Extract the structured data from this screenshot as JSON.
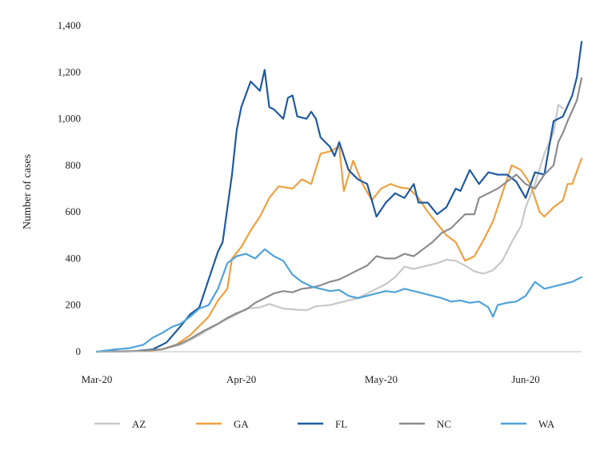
{
  "chart_data": {
    "type": "line",
    "title": "",
    "xlabel": "",
    "ylabel": "Number of cases",
    "ylim": [
      0,
      1400
    ],
    "y_ticks": [
      "0",
      "200",
      "400",
      "600",
      "800",
      "1,000",
      "1,200",
      "1,400"
    ],
    "x_ticks": [
      {
        "label": "Mar-20",
        "day": 0
      },
      {
        "label": "Apr-20",
        "day": 31
      },
      {
        "label": "May-20",
        "day": 61
      },
      {
        "label": "Jun-20",
        "day": 92
      }
    ],
    "x_unit": "days since 2020-03-01",
    "grid": false,
    "legend": "bottom",
    "series": [
      {
        "name": "AZ",
        "color": "#c8c8c8",
        "points": [
          [
            0,
            0
          ],
          [
            8,
            2
          ],
          [
            14,
            10
          ],
          [
            18,
            30
          ],
          [
            21,
            60
          ],
          [
            24,
            95
          ],
          [
            27,
            130
          ],
          [
            30,
            160
          ],
          [
            32,
            185
          ],
          [
            35,
            190
          ],
          [
            37,
            205
          ],
          [
            40,
            185
          ],
          [
            43,
            180
          ],
          [
            45,
            178
          ],
          [
            47,
            195
          ],
          [
            50,
            200
          ],
          [
            53,
            215
          ],
          [
            56,
            230
          ],
          [
            59,
            260
          ],
          [
            62,
            290
          ],
          [
            64,
            320
          ],
          [
            66,
            365
          ],
          [
            68,
            355
          ],
          [
            70,
            365
          ],
          [
            73,
            380
          ],
          [
            75,
            395
          ],
          [
            77,
            390
          ],
          [
            79,
            370
          ],
          [
            81,
            345
          ],
          [
            83,
            335
          ],
          [
            85,
            350
          ],
          [
            87,
            390
          ],
          [
            89,
            470
          ],
          [
            91,
            540
          ],
          [
            92,
            620
          ],
          [
            94,
            720
          ],
          [
            96,
            850
          ],
          [
            98,
            940
          ],
          [
            99,
            1060
          ],
          [
            100,
            1045
          ]
        ]
      },
      {
        "name": "GA",
        "color": "#f0a040",
        "points": [
          [
            0,
            0
          ],
          [
            10,
            2
          ],
          [
            14,
            10
          ],
          [
            17,
            30
          ],
          [
            20,
            70
          ],
          [
            22,
            110
          ],
          [
            24,
            150
          ],
          [
            26,
            220
          ],
          [
            28,
            270
          ],
          [
            29,
            400
          ],
          [
            31,
            450
          ],
          [
            33,
            520
          ],
          [
            35,
            580
          ],
          [
            37,
            660
          ],
          [
            39,
            710
          ],
          [
            42,
            700
          ],
          [
            44,
            740
          ],
          [
            46,
            720
          ],
          [
            48,
            850
          ],
          [
            50,
            860
          ],
          [
            52,
            880
          ],
          [
            53,
            690
          ],
          [
            55,
            820
          ],
          [
            57,
            720
          ],
          [
            59,
            650
          ],
          [
            61,
            700
          ],
          [
            63,
            720
          ],
          [
            65,
            705
          ],
          [
            67,
            700
          ],
          [
            69,
            660
          ],
          [
            71,
            600
          ],
          [
            73,
            550
          ],
          [
            75,
            500
          ],
          [
            77,
            470
          ],
          [
            79,
            390
          ],
          [
            81,
            410
          ],
          [
            83,
            480
          ],
          [
            85,
            560
          ],
          [
            87,
            680
          ],
          [
            89,
            800
          ],
          [
            91,
            780
          ],
          [
            93,
            720
          ],
          [
            95,
            600
          ],
          [
            96,
            580
          ],
          [
            98,
            620
          ],
          [
            100,
            650
          ],
          [
            101,
            720
          ],
          [
            102,
            720
          ],
          [
            104,
            830
          ]
        ]
      },
      {
        "name": "FL",
        "color": "#1f5aa0",
        "points": [
          [
            0,
            0
          ],
          [
            8,
            2
          ],
          [
            12,
            10
          ],
          [
            15,
            40
          ],
          [
            18,
            110
          ],
          [
            20,
            160
          ],
          [
            22,
            190
          ],
          [
            24,
            310
          ],
          [
            26,
            430
          ],
          [
            27,
            470
          ],
          [
            29,
            760
          ],
          [
            30,
            950
          ],
          [
            31,
            1050
          ],
          [
            33,
            1160
          ],
          [
            35,
            1120
          ],
          [
            36,
            1210
          ],
          [
            37,
            1050
          ],
          [
            38,
            1040
          ],
          [
            40,
            1000
          ],
          [
            41,
            1090
          ],
          [
            42,
            1100
          ],
          [
            43,
            1010
          ],
          [
            45,
            1000
          ],
          [
            46,
            1030
          ],
          [
            47,
            1000
          ],
          [
            48,
            920
          ],
          [
            50,
            880
          ],
          [
            51,
            840
          ],
          [
            52,
            900
          ],
          [
            54,
            780
          ],
          [
            56,
            740
          ],
          [
            58,
            720
          ],
          [
            60,
            580
          ],
          [
            62,
            640
          ],
          [
            64,
            680
          ],
          [
            66,
            660
          ],
          [
            68,
            720
          ],
          [
            69,
            640
          ],
          [
            71,
            640
          ],
          [
            73,
            590
          ],
          [
            75,
            620
          ],
          [
            77,
            700
          ],
          [
            78,
            690
          ],
          [
            80,
            780
          ],
          [
            82,
            720
          ],
          [
            84,
            770
          ],
          [
            86,
            760
          ],
          [
            88,
            760
          ],
          [
            90,
            730
          ],
          [
            92,
            660
          ],
          [
            94,
            770
          ],
          [
            96,
            760
          ],
          [
            98,
            990
          ],
          [
            100,
            1010
          ],
          [
            102,
            1100
          ],
          [
            103,
            1180
          ],
          [
            104,
            1330
          ]
        ]
      },
      {
        "name": "NC",
        "color": "#8c8c8c",
        "points": [
          [
            0,
            0
          ],
          [
            8,
            2
          ],
          [
            14,
            10
          ],
          [
            18,
            35
          ],
          [
            20,
            55
          ],
          [
            23,
            90
          ],
          [
            26,
            120
          ],
          [
            28,
            145
          ],
          [
            30,
            165
          ],
          [
            32,
            180
          ],
          [
            34,
            210
          ],
          [
            36,
            230
          ],
          [
            38,
            250
          ],
          [
            40,
            260
          ],
          [
            42,
            255
          ],
          [
            44,
            270
          ],
          [
            46,
            275
          ],
          [
            48,
            285
          ],
          [
            50,
            300
          ],
          [
            52,
            310
          ],
          [
            54,
            330
          ],
          [
            56,
            350
          ],
          [
            58,
            370
          ],
          [
            60,
            410
          ],
          [
            62,
            400
          ],
          [
            64,
            400
          ],
          [
            66,
            420
          ],
          [
            68,
            410
          ],
          [
            70,
            440
          ],
          [
            72,
            470
          ],
          [
            74,
            510
          ],
          [
            76,
            530
          ],
          [
            78,
            570
          ],
          [
            79,
            590
          ],
          [
            81,
            590
          ],
          [
            82,
            660
          ],
          [
            84,
            680
          ],
          [
            86,
            700
          ],
          [
            88,
            730
          ],
          [
            90,
            760
          ],
          [
            92,
            720
          ],
          [
            94,
            700
          ],
          [
            96,
            760
          ],
          [
            98,
            800
          ],
          [
            99,
            900
          ],
          [
            100,
            940
          ],
          [
            101,
            990
          ],
          [
            103,
            1080
          ],
          [
            104,
            1175
          ]
        ]
      },
      {
        "name": "WA",
        "color": "#4fa3d9",
        "points": [
          [
            0,
            0
          ],
          [
            4,
            10
          ],
          [
            7,
            15
          ],
          [
            10,
            30
          ],
          [
            12,
            60
          ],
          [
            14,
            80
          ],
          [
            16,
            105
          ],
          [
            18,
            120
          ],
          [
            20,
            150
          ],
          [
            22,
            185
          ],
          [
            24,
            200
          ],
          [
            26,
            270
          ],
          [
            28,
            380
          ],
          [
            30,
            410
          ],
          [
            32,
            420
          ],
          [
            34,
            400
          ],
          [
            36,
            440
          ],
          [
            38,
            410
          ],
          [
            40,
            390
          ],
          [
            42,
            330
          ],
          [
            44,
            300
          ],
          [
            46,
            280
          ],
          [
            48,
            270
          ],
          [
            50,
            260
          ],
          [
            52,
            265
          ],
          [
            54,
            240
          ],
          [
            56,
            230
          ],
          [
            58,
            240
          ],
          [
            60,
            250
          ],
          [
            62,
            260
          ],
          [
            64,
            255
          ],
          [
            66,
            270
          ],
          [
            68,
            260
          ],
          [
            70,
            250
          ],
          [
            72,
            240
          ],
          [
            74,
            230
          ],
          [
            76,
            215
          ],
          [
            78,
            220
          ],
          [
            80,
            210
          ],
          [
            82,
            215
          ],
          [
            84,
            190
          ],
          [
            85,
            150
          ],
          [
            86,
            200
          ],
          [
            88,
            210
          ],
          [
            90,
            215
          ],
          [
            92,
            240
          ],
          [
            94,
            300
          ],
          [
            96,
            270
          ],
          [
            98,
            280
          ],
          [
            100,
            290
          ],
          [
            102,
            300
          ],
          [
            104,
            320
          ]
        ]
      }
    ]
  }
}
